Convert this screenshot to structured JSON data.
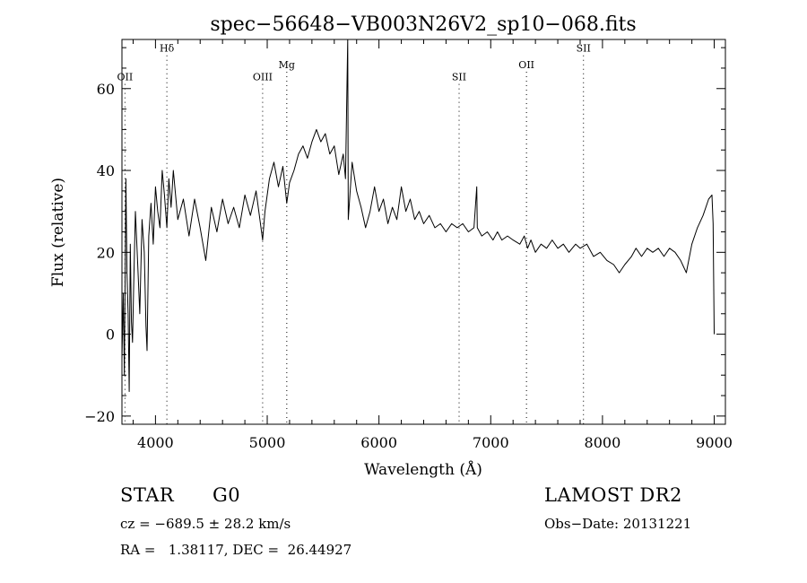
{
  "chart_data": {
    "type": "line",
    "title": "spec−56648−VB003N26V2_sp10−068.fits",
    "xlabel": "Wavelength (Å)",
    "ylabel": "Flux (relative)",
    "xlim": [
      3700,
      9100
    ],
    "ylim": [
      -22,
      72
    ],
    "x_ticks": [
      4000,
      5000,
      6000,
      7000,
      8000,
      9000
    ],
    "y_ticks": [
      -20,
      0,
      20,
      40,
      60
    ],
    "x_tick_labels": [
      "4000",
      "5000",
      "6000",
      "7000",
      "8000",
      "9000"
    ],
    "y_tick_labels": [
      "−20",
      "0",
      "20",
      "40",
      "60"
    ],
    "grid": false,
    "line_markers": [
      {
        "label": "OII",
        "x": 3727,
        "label_level": 62
      },
      {
        "label": "Hδ",
        "x": 4102,
        "label_level": 69
      },
      {
        "label": "OIII",
        "x": 4959,
        "label_level": 62
      },
      {
        "label": "Mg",
        "x": 5175,
        "label_level": 65
      },
      {
        "label": "SII",
        "x": 6717,
        "label_level": 62
      },
      {
        "label": "OII",
        "x": 7320,
        "label_level": 65
      },
      {
        "label": "SII",
        "x": 7830,
        "label_level": 69
      }
    ],
    "series": [
      {
        "points": [
          [
            3700,
            -6
          ],
          [
            3712,
            10
          ],
          [
            3722,
            -10
          ],
          [
            3735,
            38
          ],
          [
            3745,
            15
          ],
          [
            3755,
            5
          ],
          [
            3765,
            -14
          ],
          [
            3775,
            22
          ],
          [
            3785,
            3
          ],
          [
            3795,
            -2
          ],
          [
            3805,
            12
          ],
          [
            3820,
            30
          ],
          [
            3840,
            18
          ],
          [
            3860,
            5
          ],
          [
            3880,
            28
          ],
          [
            3900,
            20
          ],
          [
            3915,
            2
          ],
          [
            3925,
            -4
          ],
          [
            3940,
            24
          ],
          [
            3960,
            32
          ],
          [
            3980,
            22
          ],
          [
            4000,
            36
          ],
          [
            4020,
            30
          ],
          [
            4040,
            26
          ],
          [
            4060,
            40
          ],
          [
            4080,
            34
          ],
          [
            4102,
            26
          ],
          [
            4120,
            38
          ],
          [
            4140,
            31
          ],
          [
            4160,
            40
          ],
          [
            4200,
            28
          ],
          [
            4250,
            33
          ],
          [
            4300,
            24
          ],
          [
            4350,
            33
          ],
          [
            4400,
            26
          ],
          [
            4450,
            18
          ],
          [
            4500,
            31
          ],
          [
            4550,
            25
          ],
          [
            4600,
            33
          ],
          [
            4650,
            27
          ],
          [
            4700,
            31
          ],
          [
            4750,
            26
          ],
          [
            4800,
            34
          ],
          [
            4850,
            29
          ],
          [
            4900,
            35
          ],
          [
            4959,
            23
          ],
          [
            4980,
            30
          ],
          [
            5020,
            38
          ],
          [
            5060,
            42
          ],
          [
            5100,
            36
          ],
          [
            5140,
            41
          ],
          [
            5175,
            32
          ],
          [
            5200,
            37
          ],
          [
            5240,
            40
          ],
          [
            5280,
            44
          ],
          [
            5320,
            46
          ],
          [
            5360,
            43
          ],
          [
            5400,
            47
          ],
          [
            5440,
            50
          ],
          [
            5480,
            47
          ],
          [
            5520,
            49
          ],
          [
            5560,
            44
          ],
          [
            5600,
            46
          ],
          [
            5640,
            39
          ],
          [
            5680,
            44
          ],
          [
            5700,
            38
          ],
          [
            5720,
            74
          ],
          [
            5725,
            28
          ],
          [
            5760,
            42
          ],
          [
            5800,
            35
          ],
          [
            5840,
            31
          ],
          [
            5880,
            26
          ],
          [
            5920,
            30
          ],
          [
            5960,
            36
          ],
          [
            6000,
            30
          ],
          [
            6040,
            33
          ],
          [
            6080,
            27
          ],
          [
            6120,
            31
          ],
          [
            6160,
            28
          ],
          [
            6200,
            36
          ],
          [
            6240,
            30
          ],
          [
            6280,
            33
          ],
          [
            6320,
            28
          ],
          [
            6360,
            30
          ],
          [
            6400,
            27
          ],
          [
            6450,
            29
          ],
          [
            6500,
            26
          ],
          [
            6550,
            27
          ],
          [
            6600,
            25
          ],
          [
            6650,
            27
          ],
          [
            6700,
            26
          ],
          [
            6750,
            27
          ],
          [
            6800,
            25
          ],
          [
            6850,
            26
          ],
          [
            6875,
            36
          ],
          [
            6880,
            26
          ],
          [
            6920,
            24
          ],
          [
            6970,
            25
          ],
          [
            7020,
            23
          ],
          [
            7060,
            25
          ],
          [
            7100,
            23
          ],
          [
            7150,
            24
          ],
          [
            7200,
            23
          ],
          [
            7260,
            22
          ],
          [
            7300,
            24
          ],
          [
            7330,
            21
          ],
          [
            7360,
            23
          ],
          [
            7400,
            20
          ],
          [
            7450,
            22
          ],
          [
            7500,
            21
          ],
          [
            7550,
            23
          ],
          [
            7600,
            21
          ],
          [
            7650,
            22
          ],
          [
            7700,
            20
          ],
          [
            7760,
            22
          ],
          [
            7800,
            21
          ],
          [
            7860,
            22
          ],
          [
            7920,
            19
          ],
          [
            7980,
            20
          ],
          [
            8040,
            18
          ],
          [
            8100,
            17
          ],
          [
            8150,
            15
          ],
          [
            8200,
            17
          ],
          [
            8260,
            19
          ],
          [
            8300,
            21
          ],
          [
            8350,
            19
          ],
          [
            8400,
            21
          ],
          [
            8450,
            20
          ],
          [
            8500,
            21
          ],
          [
            8550,
            19
          ],
          [
            8600,
            21
          ],
          [
            8650,
            20
          ],
          [
            8700,
            18
          ],
          [
            8750,
            15
          ],
          [
            8800,
            22
          ],
          [
            8850,
            26
          ],
          [
            8900,
            29
          ],
          [
            8950,
            33
          ],
          [
            8980,
            34
          ],
          [
            8990,
            27
          ],
          [
            9000,
            0
          ]
        ]
      }
    ]
  },
  "info": {
    "object_type": "STAR",
    "subclass": "G0",
    "survey": "LAMOST DR2",
    "redshift_line": "cz = −689.5 ± 28.2 km/s",
    "obs_date_line": "Obs−Date: 20131221",
    "coords_line": "RA =   1.38117, DEC =  26.44927"
  }
}
